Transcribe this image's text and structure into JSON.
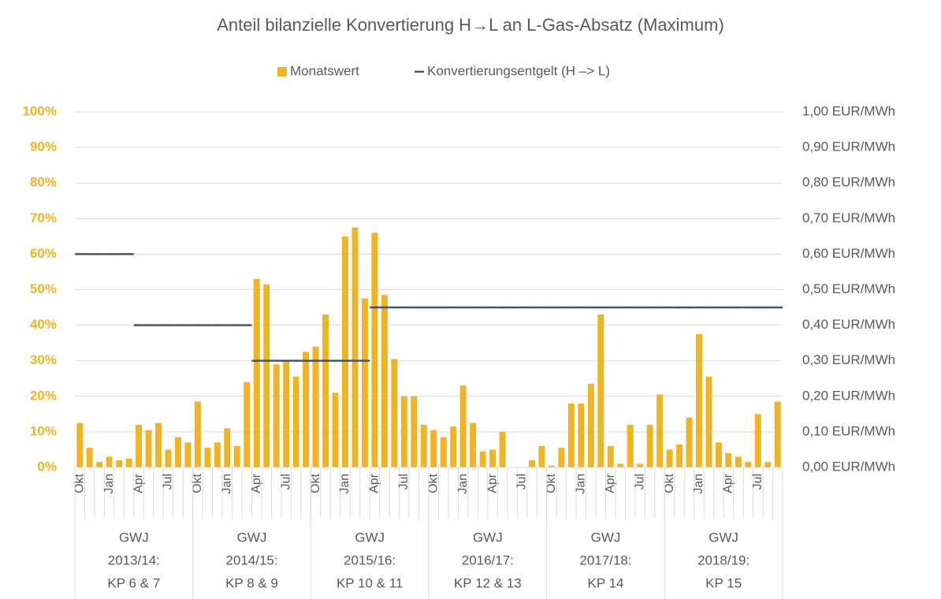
{
  "chart_data": {
    "type": "bar",
    "title": "Anteil bilanzielle Konvertierung H→L an L-Gas-Absatz (Maximum)",
    "categories": [
      "Okt",
      null,
      null,
      "Jan",
      null,
      null,
      "Apr",
      null,
      null,
      "Jul",
      null,
      null,
      "Okt",
      null,
      null,
      "Jan",
      null,
      null,
      "Apr",
      null,
      null,
      "Jul",
      null,
      null,
      "Okt",
      null,
      null,
      "Jan",
      null,
      null,
      "Apr",
      null,
      null,
      "Jul",
      null,
      null,
      "Okt",
      null,
      null,
      "Jan",
      null,
      null,
      "Apr",
      null,
      null,
      "Jul",
      null,
      null,
      "Okt",
      null,
      null,
      "Jan",
      null,
      null,
      "Apr",
      null,
      null,
      "Jul",
      null,
      null,
      "Okt",
      null,
      null,
      "Jan",
      null,
      null,
      "Apr",
      null,
      null,
      "Jul",
      null,
      null
    ],
    "groups": [
      [
        "GWJ",
        "2013/14:",
        "KP 6 & 7"
      ],
      [
        "GWJ",
        "2014/15:",
        "KP 8 & 9"
      ],
      [
        "GWJ",
        "2015/16:",
        "KP 10 & 11"
      ],
      [
        "GWJ",
        "2016/17:",
        "KP 12 & 13"
      ],
      [
        "GWJ",
        "2017/18:",
        "KP 14"
      ],
      [
        "GWJ",
        "2018/19:",
        "KP 15"
      ]
    ],
    "series": [
      {
        "name": "Monatswert",
        "color": "#f0b323",
        "values": [
          12.5,
          5.5,
          1.5,
          3,
          2,
          2.5,
          12,
          10.5,
          12.5,
          5,
          8.5,
          7,
          18.5,
          5.5,
          7,
          11,
          6,
          24,
          53,
          51.5,
          29,
          30,
          25.5,
          32.5,
          34,
          43,
          21,
          65,
          67.5,
          47.5,
          66,
          48.5,
          30.5,
          20,
          20,
          12,
          10.5,
          8.5,
          11.5,
          23,
          12.5,
          4.5,
          5,
          10,
          0,
          0,
          2,
          6,
          0.5,
          5.5,
          18,
          18,
          23.5,
          43,
          6,
          1,
          12,
          1,
          12,
          20.5,
          5,
          6.5,
          14,
          37.5,
          25.5,
          7,
          4,
          3,
          1.5,
          15,
          1.5,
          18.5
        ]
      },
      {
        "name": "Konvertierungsentgelt (H –> L)",
        "color": "#44546a",
        "type": "line",
        "axis": "y2",
        "values": [
          0.6,
          0.6,
          0.6,
          0.6,
          0.6,
          0.6,
          0.4,
          0.4,
          0.4,
          0.4,
          0.4,
          0.4,
          0.4,
          0.4,
          0.4,
          0.4,
          0.4,
          0.4,
          0.3,
          0.3,
          0.3,
          0.3,
          0.3,
          0.3,
          0.3,
          0.3,
          0.3,
          0.3,
          0.3,
          0.3,
          0.45,
          0.45,
          0.45,
          0.45,
          0.45,
          0.45,
          0.45,
          0.45,
          0.45,
          0.45,
          0.45,
          0.45,
          0.45,
          0.45,
          0.45,
          0.45,
          0.45,
          0.45,
          0.45,
          0.45,
          0.45,
          0.45,
          0.45,
          0.45,
          0.45,
          0.45,
          0.45,
          0.45,
          0.45,
          0.45,
          0.45,
          0.45,
          0.45,
          0.45,
          0.45,
          0.45,
          0.45,
          0.45,
          0.45,
          0.45,
          0.45,
          0.45
        ]
      }
    ],
    "ylim": [
      0,
      100
    ],
    "yticks": [
      {
        "value": 0,
        "label": "0%"
      },
      {
        "value": 10,
        "label": "10%"
      },
      {
        "value": 20,
        "label": "20%"
      },
      {
        "value": 30,
        "label": "30%"
      },
      {
        "value": 40,
        "label": "40%"
      },
      {
        "value": 50,
        "label": "50%"
      },
      {
        "value": 60,
        "label": "60%"
      },
      {
        "value": 70,
        "label": "70%"
      },
      {
        "value": 80,
        "label": "80%"
      },
      {
        "value": 90,
        "label": "90%"
      },
      {
        "value": 100,
        "label": "100%"
      }
    ],
    "y2lim": [
      0,
      1
    ],
    "y2ticks": [
      {
        "value": 0,
        "label": "0,00 EUR/MWh"
      },
      {
        "value": 0.1,
        "label": "0,10 EUR/MWh"
      },
      {
        "value": 0.2,
        "label": "0,20 EUR/MWh"
      },
      {
        "value": 0.3,
        "label": "0,30 EUR/MWh"
      },
      {
        "value": 0.4,
        "label": "0,40 EUR/MWh"
      },
      {
        "value": 0.5,
        "label": "0,50 EUR/MWh"
      },
      {
        "value": 0.6,
        "label": "0,60 EUR/MWh"
      },
      {
        "value": 0.7,
        "label": "0,70 EUR/MWh"
      },
      {
        "value": 0.8,
        "label": "0,80 EUR/MWh"
      },
      {
        "value": 0.9,
        "label": "0,90 EUR/MWh"
      },
      {
        "value": 1,
        "label": "1,00 EUR/MWh"
      }
    ],
    "grid": true,
    "legend": "top"
  }
}
